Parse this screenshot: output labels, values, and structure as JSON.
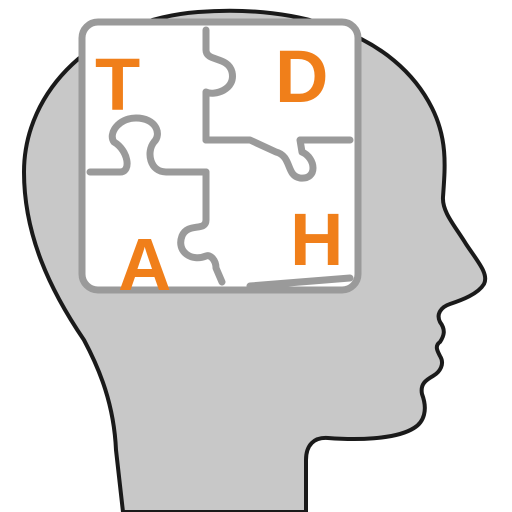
{
  "logo": {
    "letters": {
      "top_left": "T",
      "top_right": "D",
      "bottom_left": "A",
      "bottom_right": "H"
    },
    "colors": {
      "head_fill": "#c8c8c8",
      "head_outline": "#1a1a1a",
      "puzzle_fill": "#ffffff",
      "puzzle_border": "#9a9a9a",
      "letter": "#f07f1a"
    }
  }
}
